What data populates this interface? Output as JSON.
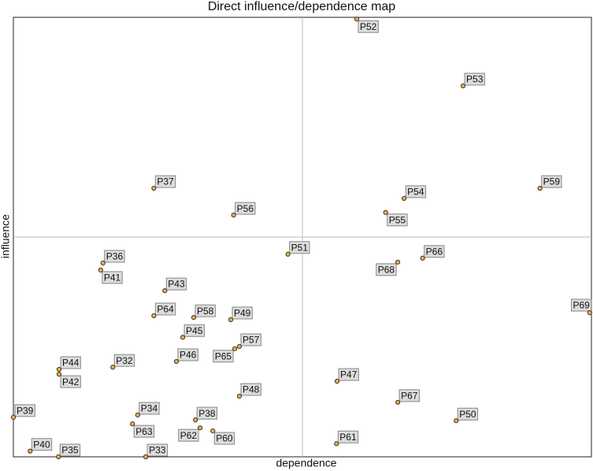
{
  "chart_data": {
    "type": "scatter",
    "title": "Direct influence/dependence map",
    "x_label": "dependence",
    "y_label": "influence",
    "xlim": [
      0,
      100
    ],
    "ylim": [
      0,
      100
    ],
    "color": "#f0b040",
    "labels": [
      "P52",
      "P53",
      "P37",
      "P56",
      "P54",
      "P55",
      "P59",
      "P51",
      "P36",
      "P41",
      "P66",
      "P68",
      "P43",
      "P69",
      "P64",
      "P58",
      "P49",
      "P45",
      "P57",
      "P65",
      "P46",
      "P32",
      "P44",
      "P42",
      "P47",
      "P48",
      "P67",
      "P39",
      "P34",
      "P63",
      "P38",
      "P62",
      "P60",
      "P50",
      "P61",
      "P40",
      "P35",
      "P33"
    ],
    "x": [
      59.4,
      77.8,
      24.3,
      38.1,
      67.6,
      64.4,
      91.1,
      47.5,
      15.5,
      15.1,
      70.8,
      66.5,
      26.2,
      99.7,
      24.3,
      31.2,
      37.6,
      29.3,
      39.1,
      38.3,
      28.2,
      17.2,
      7.9,
      7.9,
      56.0,
      39.1,
      66.5,
      0,
      21.5,
      20.6,
      31.5,
      32.3,
      34.5,
      76.6,
      55.9,
      2.9,
      7.8,
      22.9
    ],
    "y": [
      99.6,
      84.4,
      61.1,
      55.0,
      58.8,
      55.6,
      61.1,
      46.1,
      44.1,
      42.5,
      45.2,
      44.3,
      37.8,
      32.8,
      32.1,
      31.7,
      31.2,
      27.2,
      25.1,
      24.6,
      21.7,
      20.4,
      19.9,
      18.8,
      17.2,
      13.8,
      12.4,
      9.0,
      9.5,
      7.5,
      8.4,
      6.6,
      5.9,
      8.2,
      3.0,
      1.3,
      0,
      0
    ]
  }
}
